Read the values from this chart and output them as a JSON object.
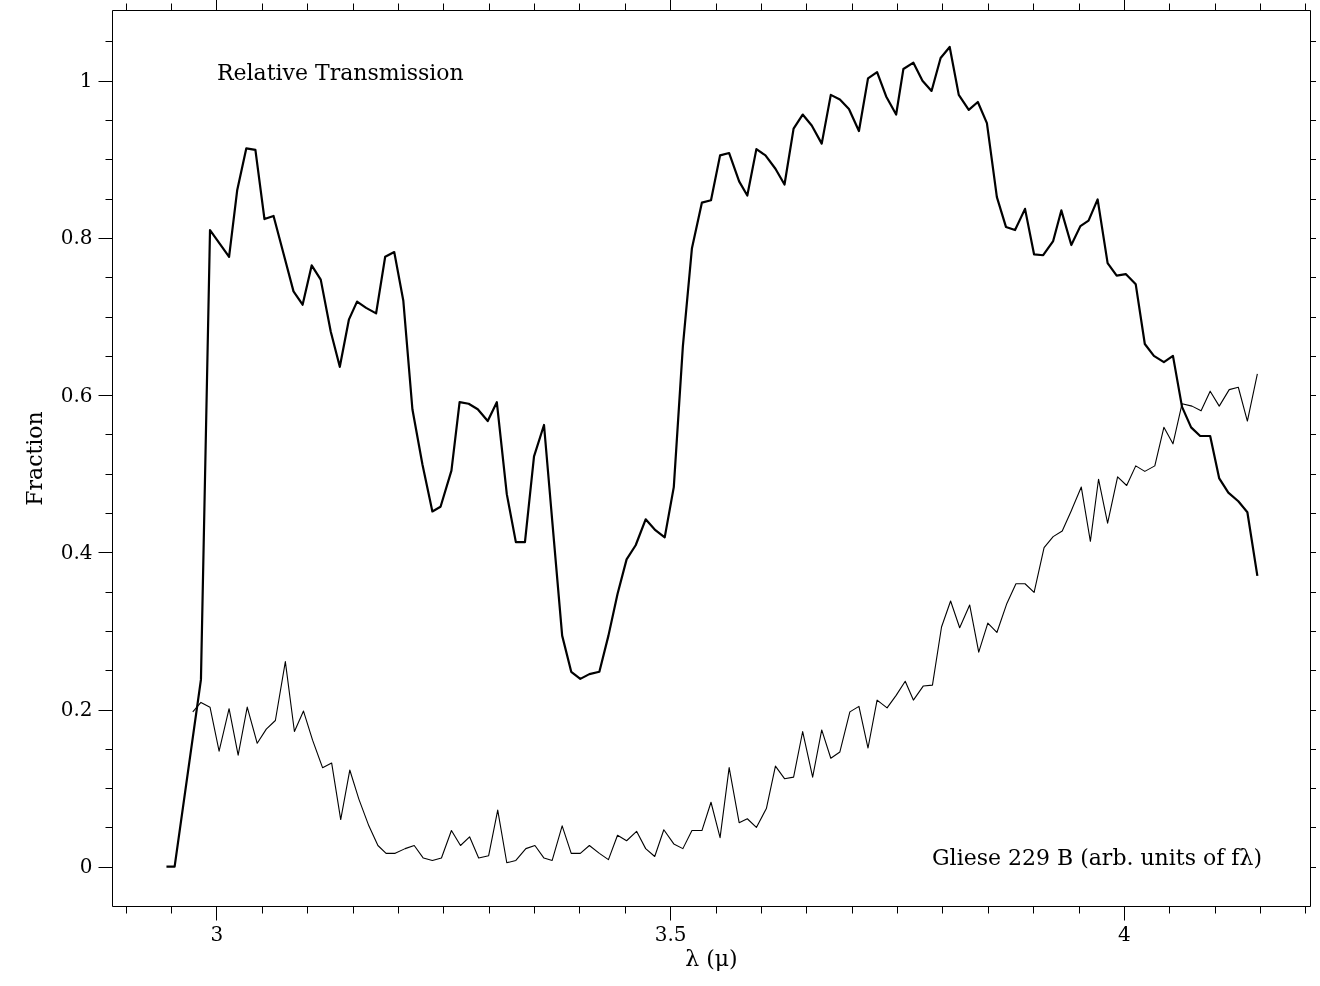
{
  "chart_data": {
    "type": "line",
    "xlabel": "λ (μ)",
    "ylabel": "Fraction",
    "annotations": [
      "Relative Transmission",
      "Gliese 229 B (arb. units of fλ)"
    ],
    "xlim": [
      2.885,
      4.205
    ],
    "ylim": [
      -0.05,
      1.09
    ],
    "xticks": [
      {
        "value": 2.9,
        "label": null
      },
      {
        "value": 2.95,
        "label": null
      },
      3,
      {
        "value": 3.05,
        "label": null
      },
      {
        "value": 3.1,
        "label": null
      },
      {
        "value": 3.15,
        "label": null
      },
      {
        "value": 3.2,
        "label": null
      },
      {
        "value": 3.25,
        "label": null
      },
      {
        "value": 3.3,
        "label": null
      },
      {
        "value": 3.35,
        "label": null
      },
      {
        "value": 3.4,
        "label": null
      },
      {
        "value": 3.45,
        "label": null
      },
      3.5,
      {
        "value": 3.55,
        "label": null
      },
      {
        "value": 3.6,
        "label": null
      },
      {
        "value": 3.65,
        "label": null
      },
      {
        "value": 3.7,
        "label": null
      },
      {
        "value": 3.75,
        "label": null
      },
      {
        "value": 3.8,
        "label": null
      },
      {
        "value": 3.85,
        "label": null
      },
      {
        "value": 3.9,
        "label": null
      },
      {
        "value": 3.95,
        "label": null
      },
      4,
      {
        "value": 4.05,
        "label": null
      },
      {
        "value": 4.1,
        "label": null
      },
      {
        "value": 4.15,
        "label": null
      },
      {
        "value": 4.2,
        "label": null
      }
    ],
    "yticks": [
      0,
      {
        "value": 0.05,
        "label": null
      },
      {
        "value": 0.1,
        "label": null
      },
      {
        "value": 0.15,
        "label": null
      },
      0.2,
      {
        "value": 0.25,
        "label": null
      },
      {
        "value": 0.3,
        "label": null
      },
      {
        "value": 0.35,
        "label": null
      },
      0.4,
      {
        "value": 0.45,
        "label": null
      },
      {
        "value": 0.5,
        "label": null
      },
      {
        "value": 0.55,
        "label": null
      },
      0.6,
      {
        "value": 0.65,
        "label": null
      },
      {
        "value": 0.7,
        "label": null
      },
      {
        "value": 0.75,
        "label": null
      },
      0.8,
      {
        "value": 0.85,
        "label": null
      },
      {
        "value": 0.9,
        "label": null
      },
      {
        "value": 0.95,
        "label": null
      },
      1,
      {
        "value": 1.05,
        "label": null
      }
    ],
    "grid": false,
    "marker": "none",
    "line_style": "solid",
    "series": [
      {
        "color": "#000000",
        "x": [
          2.945,
          2.954,
          2.983,
          2.993,
          3.014,
          3.023,
          3.033,
          3.043,
          3.053,
          3.063,
          3.085,
          3.095,
          3.105,
          3.115,
          3.126,
          3.136,
          3.146,
          3.155,
          3.165,
          3.176,
          3.186,
          3.196,
          3.206,
          3.216,
          3.227,
          3.238,
          3.247,
          3.259,
          3.268,
          3.278,
          3.288,
          3.299,
          3.309,
          3.32,
          3.33,
          3.34,
          3.35,
          3.361,
          3.37,
          3.381,
          3.391,
          3.401,
          3.411,
          3.422,
          3.432,
          3.442,
          3.452,
          3.462,
          3.473,
          3.483,
          3.494,
          3.504,
          3.514,
          3.524,
          3.535,
          3.545,
          3.555,
          3.565,
          3.576,
          3.585,
          3.595,
          3.605,
          3.616,
          3.626,
          3.636,
          3.646,
          3.656,
          3.667,
          3.677,
          3.687,
          3.697,
          3.708,
          3.718,
          3.728,
          3.738,
          3.749,
          3.757,
          3.768,
          3.778,
          3.788,
          3.798,
          3.808,
          3.818,
          3.829,
          3.839,
          3.849,
          3.86,
          3.87,
          3.88,
          3.891,
          3.901,
          3.911,
          3.922,
          3.931,
          3.942,
          3.952,
          3.961,
          3.971,
          3.982,
          3.992,
          4.002,
          4.013,
          4.023,
          4.033,
          4.044,
          4.054,
          4.064,
          4.074,
          4.084,
          4.095,
          4.105,
          4.115,
          4.126,
          4.136,
          4.147
        ],
        "values": [
          0,
          0,
          0.238,
          0.81,
          0.776,
          0.861,
          0.914,
          0.912,
          0.824,
          0.828,
          0.732,
          0.715,
          0.765,
          0.747,
          0.681,
          0.636,
          0.696,
          0.719,
          0.711,
          0.704,
          0.776,
          0.782,
          0.72,
          0.582,
          0.512,
          0.452,
          0.458,
          0.504,
          0.591,
          0.589,
          0.582,
          0.567,
          0.591,
          0.474,
          0.413,
          0.413,
          0.522,
          0.562,
          0.441,
          0.294,
          0.248,
          0.239,
          0.245,
          0.248,
          0.294,
          0.347,
          0.391,
          0.409,
          0.442,
          0.429,
          0.419,
          0.483,
          0.662,
          0.787,
          0.845,
          0.848,
          0.905,
          0.908,
          0.872,
          0.854,
          0.913,
          0.905,
          0.888,
          0.868,
          0.939,
          0.957,
          0.943,
          0.92,
          0.982,
          0.976,
          0.964,
          0.936,
          1.003,
          1.011,
          0.98,
          0.957,
          1.015,
          1.023,
          1.0,
          0.987,
          1.029,
          1.043,
          0.982,
          0.963,
          0.973,
          0.946,
          0.852,
          0.814,
          0.81,
          0.837,
          0.779,
          0.778,
          0.796,
          0.835,
          0.791,
          0.815,
          0.822,
          0.849,
          0.768,
          0.752,
          0.754,
          0.741,
          0.665,
          0.65,
          0.642,
          0.65,
          0.585,
          0.559,
          0.548,
          0.548,
          0.494,
          0.476,
          0.465,
          0.451,
          0.37
        ]
      },
      {
        "color": "#000000",
        "x": [
          2.974,
          2.983,
          2.993,
          3.003,
          3.014,
          3.024,
          3.034,
          3.045,
          3.055,
          3.065,
          3.076,
          3.086,
          3.096,
          3.106,
          3.117,
          3.127,
          3.137,
          3.147,
          3.157,
          3.168,
          3.178,
          3.187,
          3.197,
          3.208,
          3.218,
          3.228,
          3.238,
          3.248,
          3.259,
          3.269,
          3.279,
          3.289,
          3.3,
          3.31,
          3.32,
          3.33,
          3.341,
          3.351,
          3.361,
          3.37,
          3.381,
          3.391,
          3.401,
          3.411,
          3.422,
          3.432,
          3.442,
          3.452,
          3.463,
          3.473,
          3.483,
          3.493,
          3.504,
          3.514,
          3.524,
          3.535,
          3.545,
          3.555,
          3.565,
          3.576,
          3.585,
          3.595,
          3.606,
          3.616,
          3.626,
          3.636,
          3.646,
          3.657,
          3.667,
          3.677,
          3.687,
          3.698,
          3.708,
          3.718,
          3.728,
          3.739,
          3.749,
          3.759,
          3.768,
          3.779,
          3.789,
          3.799,
          3.809,
          3.819,
          3.83,
          3.84,
          3.85,
          3.86,
          3.871,
          3.881,
          3.891,
          3.901,
          3.912,
          3.922,
          3.932,
          3.942,
          3.953,
          3.963,
          3.972,
          3.982,
          3.993,
          4.003,
          4.013,
          4.023,
          4.034,
          4.044,
          4.054,
          4.064,
          4.075,
          4.085,
          4.095,
          4.105,
          4.116,
          4.126,
          4.136,
          4.147
        ],
        "values": [
          0.197,
          0.209,
          0.203,
          0.147,
          0.201,
          0.142,
          0.203,
          0.157,
          0.175,
          0.186,
          0.261,
          0.172,
          0.198,
          0.161,
          0.126,
          0.132,
          0.06,
          0.123,
          0.086,
          0.052,
          0.027,
          0.017,
          0.017,
          0.023,
          0.027,
          0.011,
          0.008,
          0.011,
          0.046,
          0.027,
          0.038,
          0.011,
          0.014,
          0.072,
          0.005,
          0.008,
          0.023,
          0.027,
          0.011,
          0.008,
          0.052,
          0.017,
          0.017,
          0.027,
          0.017,
          0.009,
          0.04,
          0.033,
          0.045,
          0.023,
          0.013,
          0.047,
          0.029,
          0.023,
          0.046,
          0.046,
          0.082,
          0.037,
          0.126,
          0.056,
          0.061,
          0.05,
          0.074,
          0.128,
          0.112,
          0.114,
          0.172,
          0.114,
          0.174,
          0.138,
          0.146,
          0.197,
          0.204,
          0.151,
          0.212,
          0.202,
          0.218,
          0.236,
          0.212,
          0.23,
          0.231,
          0.305,
          0.338,
          0.304,
          0.333,
          0.273,
          0.31,
          0.298,
          0.335,
          0.36,
          0.36,
          0.349,
          0.406,
          0.42,
          0.427,
          0.453,
          0.483,
          0.414,
          0.493,
          0.437,
          0.496,
          0.485,
          0.51,
          0.503,
          0.51,
          0.559,
          0.538,
          0.589,
          0.586,
          0.58,
          0.605,
          0.586,
          0.607,
          0.61,
          0.567,
          0.627
        ]
      }
    ]
  }
}
